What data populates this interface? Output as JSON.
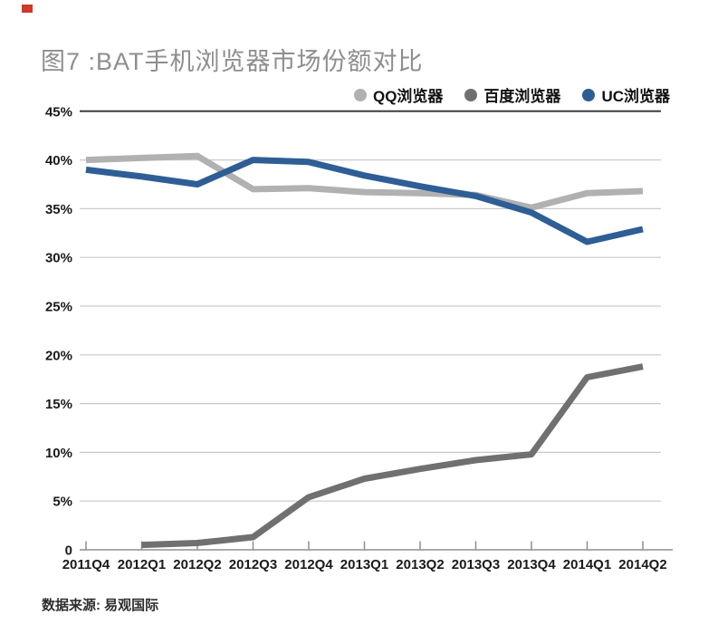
{
  "title": "图7 :BAT手机浏览器市场份额对比",
  "source": "数据来源: 易观国际",
  "colors": {
    "title": "#8e8e8e",
    "grid": "#c9c9c9",
    "grid_top": "#3e3e3e",
    "axis": "#8f8f8f",
    "tick_label": "#1a1a1a",
    "red_mark": "#cf382a"
  },
  "chart_data": {
    "type": "line",
    "title": "图7 :BAT手机浏览器市场份额对比",
    "categories": [
      "2011Q4",
      "2012Q1",
      "2012Q2",
      "2012Q3",
      "2012Q4",
      "2013Q1",
      "2013Q2",
      "2013Q3",
      "2013Q4",
      "2014Q1",
      "2014Q2"
    ],
    "series": [
      {
        "name": "QQ浏览器",
        "color": "#b1b1b1",
        "values": [
          40.0,
          40.2,
          40.4,
          37.0,
          37.1,
          36.7,
          36.6,
          36.4,
          35.1,
          36.6,
          36.8
        ]
      },
      {
        "name": "百度浏览器",
        "color": "#707070",
        "values": [
          null,
          0.5,
          0.7,
          1.3,
          5.4,
          7.3,
          8.3,
          9.2,
          9.8,
          17.7,
          18.8
        ]
      },
      {
        "name": "UC浏览器",
        "color": "#2e5e95",
        "values": [
          39.0,
          38.3,
          37.5,
          40.0,
          39.8,
          38.4,
          37.3,
          36.3,
          34.6,
          31.6,
          32.9
        ]
      }
    ],
    "ylabel": "",
    "xlabel": "",
    "ylim": [
      0,
      45
    ],
    "ytick_step": 5,
    "ytick_labels": [
      "0",
      "5%",
      "10%",
      "15%",
      "20%",
      "25%",
      "30%",
      "35%",
      "40%",
      "45%"
    ],
    "grid": true,
    "legend_position": "top-right",
    "source": "数据来源: 易观国际"
  }
}
